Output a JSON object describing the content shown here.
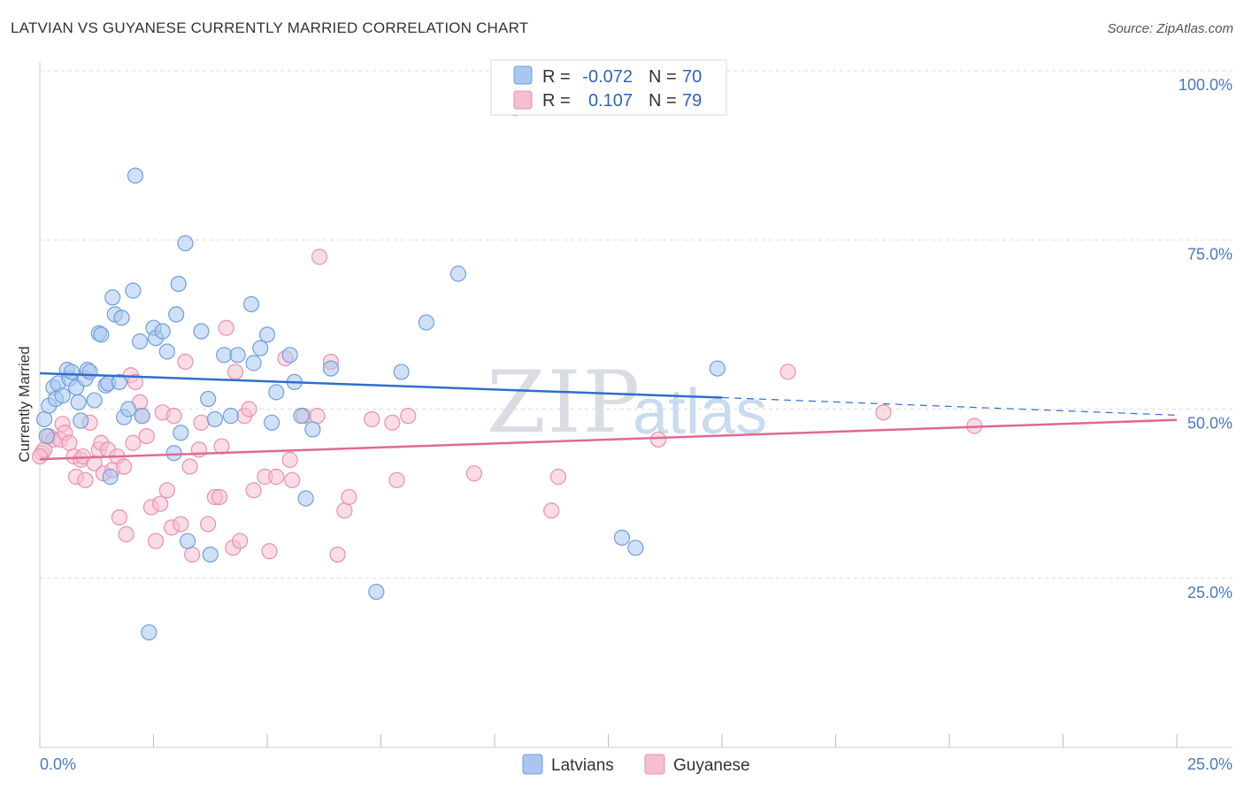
{
  "header": {
    "title": "LATVIAN VS GUYANESE CURRENTLY MARRIED CORRELATION CHART",
    "source": "Source: ZipAtlas.com"
  },
  "legend": {
    "row1": {
      "r_label": "R = ",
      "r_value": "-0.072",
      "n_label": "N = ",
      "n_value": "70"
    },
    "row2": {
      "r_label": "R = ",
      "r_value": "0.107",
      "n_label": "N = ",
      "n_value": "79"
    }
  },
  "bottom_legend": {
    "series1": "Latvians",
    "series2": "Guyanese"
  },
  "watermark": {
    "zip": "ZIP",
    "atlas": "atlas"
  },
  "colors": {
    "latvians_fill": "#a9c7ee",
    "latvians_stroke": "#6f9fdc",
    "latvians_line": "#2e6fcc",
    "guyanese_fill": "#f6bfd0",
    "guyanese_stroke": "#ea8fae",
    "guyanese_line": "#e06993",
    "tick_text": "#4a78c2",
    "grid": "#dddddd"
  },
  "chart_data": {
    "type": "scatter",
    "title": "LATVIAN VS GUYANESE CURRENTLY MARRIED CORRELATION CHART",
    "xlabel": "",
    "ylabel": "Currently Married",
    "xlim": [
      0,
      25
    ],
    "ylim": [
      0,
      100
    ],
    "x_tick_labels": [
      "0.0%",
      "25.0%"
    ],
    "y_ticks": [
      25,
      50,
      75,
      100
    ],
    "y_tick_labels": [
      "25.0%",
      "50.0%",
      "75.0%",
      "100.0%"
    ],
    "grid": true,
    "legend_position": "top-center",
    "series": [
      {
        "name": "Latvians",
        "r": -0.072,
        "n": 70,
        "trend": {
          "x0": 0,
          "y0": 55.3,
          "x1": 15,
          "y1": 51.7,
          "dashed_to_x": 25,
          "dashed_to_y": 49.1
        },
        "points": [
          [
            0.1,
            48.5
          ],
          [
            0.2,
            50.5
          ],
          [
            0.3,
            53.2
          ],
          [
            0.35,
            51.5
          ],
          [
            0.4,
            53.8
          ],
          [
            0.5,
            52.0
          ],
          [
            0.6,
            55.8
          ],
          [
            0.65,
            54.5
          ],
          [
            0.7,
            55.5
          ],
          [
            0.8,
            53.2
          ],
          [
            0.85,
            51.0
          ],
          [
            0.9,
            48.3
          ],
          [
            1.0,
            54.5
          ],
          [
            1.05,
            55.8
          ],
          [
            1.1,
            55.5
          ],
          [
            1.2,
            51.3
          ],
          [
            1.3,
            61.2
          ],
          [
            1.35,
            61.0
          ],
          [
            1.45,
            53.5
          ],
          [
            1.5,
            53.8
          ],
          [
            1.55,
            40.0
          ],
          [
            1.6,
            66.5
          ],
          [
            1.65,
            64.0
          ],
          [
            1.75,
            54.0
          ],
          [
            1.8,
            63.5
          ],
          [
            1.85,
            48.8
          ],
          [
            1.95,
            50.0
          ],
          [
            2.05,
            67.5
          ],
          [
            2.1,
            84.5
          ],
          [
            2.2,
            60.0
          ],
          [
            2.25,
            49.0
          ],
          [
            2.4,
            17.0
          ],
          [
            2.5,
            62.0
          ],
          [
            2.55,
            60.5
          ],
          [
            2.7,
            61.5
          ],
          [
            2.8,
            58.5
          ],
          [
            2.95,
            43.5
          ],
          [
            3.0,
            64.0
          ],
          [
            3.05,
            68.5
          ],
          [
            3.1,
            46.5
          ],
          [
            3.2,
            74.5
          ],
          [
            3.25,
            30.5
          ],
          [
            3.55,
            61.5
          ],
          [
            3.75,
            28.5
          ],
          [
            3.7,
            51.5
          ],
          [
            3.85,
            48.5
          ],
          [
            4.05,
            58.0
          ],
          [
            4.2,
            49.0
          ],
          [
            4.35,
            58.0
          ],
          [
            4.65,
            65.5
          ],
          [
            4.7,
            56.8
          ],
          [
            4.85,
            59.0
          ],
          [
            5.0,
            61.0
          ],
          [
            5.1,
            48.0
          ],
          [
            5.2,
            52.5
          ],
          [
            5.5,
            58.0
          ],
          [
            5.6,
            54.0
          ],
          [
            5.75,
            49.0
          ],
          [
            5.85,
            36.8
          ],
          [
            6.0,
            47.0
          ],
          [
            6.4,
            56.0
          ],
          [
            7.4,
            23.0
          ],
          [
            7.95,
            55.5
          ],
          [
            8.5,
            62.8
          ],
          [
            9.2,
            70.0
          ],
          [
            10.45,
            94.5
          ],
          [
            12.8,
            31.0
          ],
          [
            13.1,
            29.5
          ],
          [
            14.9,
            56.0
          ],
          [
            0.15,
            46.0
          ]
        ]
      },
      {
        "name": "Guyanese",
        "r": 0.107,
        "n": 79,
        "trend": {
          "x0": 0,
          "y0": 42.6,
          "x1": 25,
          "y1": 48.4
        },
        "points": [
          [
            0.05,
            43.5
          ],
          [
            0.1,
            44.0
          ],
          [
            0.2,
            46.0
          ],
          [
            0.3,
            45.5
          ],
          [
            0.45,
            45.5
          ],
          [
            0.5,
            47.8
          ],
          [
            0.55,
            46.5
          ],
          [
            0.65,
            45.0
          ],
          [
            0.75,
            43.0
          ],
          [
            0.8,
            40.0
          ],
          [
            0.9,
            42.5
          ],
          [
            0.95,
            43.0
          ],
          [
            1.0,
            39.5
          ],
          [
            1.1,
            48.0
          ],
          [
            1.2,
            42.0
          ],
          [
            1.3,
            44.0
          ],
          [
            1.35,
            45.0
          ],
          [
            1.4,
            40.5
          ],
          [
            1.5,
            44.0
          ],
          [
            1.6,
            41.0
          ],
          [
            1.7,
            43.0
          ],
          [
            1.75,
            34.0
          ],
          [
            1.85,
            41.5
          ],
          [
            1.9,
            31.5
          ],
          [
            2.0,
            55.0
          ],
          [
            2.05,
            45.0
          ],
          [
            2.1,
            54.0
          ],
          [
            2.2,
            51.0
          ],
          [
            2.25,
            49.0
          ],
          [
            2.35,
            46.0
          ],
          [
            2.45,
            35.5
          ],
          [
            2.55,
            30.5
          ],
          [
            2.65,
            36.0
          ],
          [
            2.7,
            49.5
          ],
          [
            2.8,
            38.0
          ],
          [
            2.9,
            32.5
          ],
          [
            2.95,
            49.0
          ],
          [
            3.1,
            33.0
          ],
          [
            3.2,
            57.0
          ],
          [
            3.3,
            41.5
          ],
          [
            3.35,
            28.5
          ],
          [
            3.5,
            44.0
          ],
          [
            3.55,
            48.0
          ],
          [
            3.7,
            33.0
          ],
          [
            3.85,
            37.0
          ],
          [
            3.95,
            37.0
          ],
          [
            4.0,
            44.5
          ],
          [
            4.1,
            62.0
          ],
          [
            4.25,
            29.5
          ],
          [
            4.3,
            55.5
          ],
          [
            4.4,
            30.5
          ],
          [
            4.5,
            49.0
          ],
          [
            4.6,
            50.0
          ],
          [
            4.7,
            38.0
          ],
          [
            4.95,
            40.0
          ],
          [
            5.05,
            29.0
          ],
          [
            5.2,
            40.0
          ],
          [
            5.4,
            57.5
          ],
          [
            5.5,
            42.5
          ],
          [
            5.55,
            39.5
          ],
          [
            5.8,
            49.0
          ],
          [
            6.15,
            72.5
          ],
          [
            6.1,
            49.0
          ],
          [
            6.4,
            57.0
          ],
          [
            6.55,
            28.5
          ],
          [
            6.7,
            35.0
          ],
          [
            6.8,
            37.0
          ],
          [
            7.3,
            48.5
          ],
          [
            7.75,
            48.0
          ],
          [
            7.85,
            39.5
          ],
          [
            8.1,
            49.0
          ],
          [
            9.55,
            40.5
          ],
          [
            11.25,
            35.0
          ],
          [
            11.4,
            40.0
          ],
          [
            13.6,
            45.5
          ],
          [
            16.45,
            55.5
          ],
          [
            18.55,
            49.5
          ],
          [
            20.55,
            47.5
          ],
          [
            0.0,
            43.0
          ]
        ]
      }
    ]
  }
}
